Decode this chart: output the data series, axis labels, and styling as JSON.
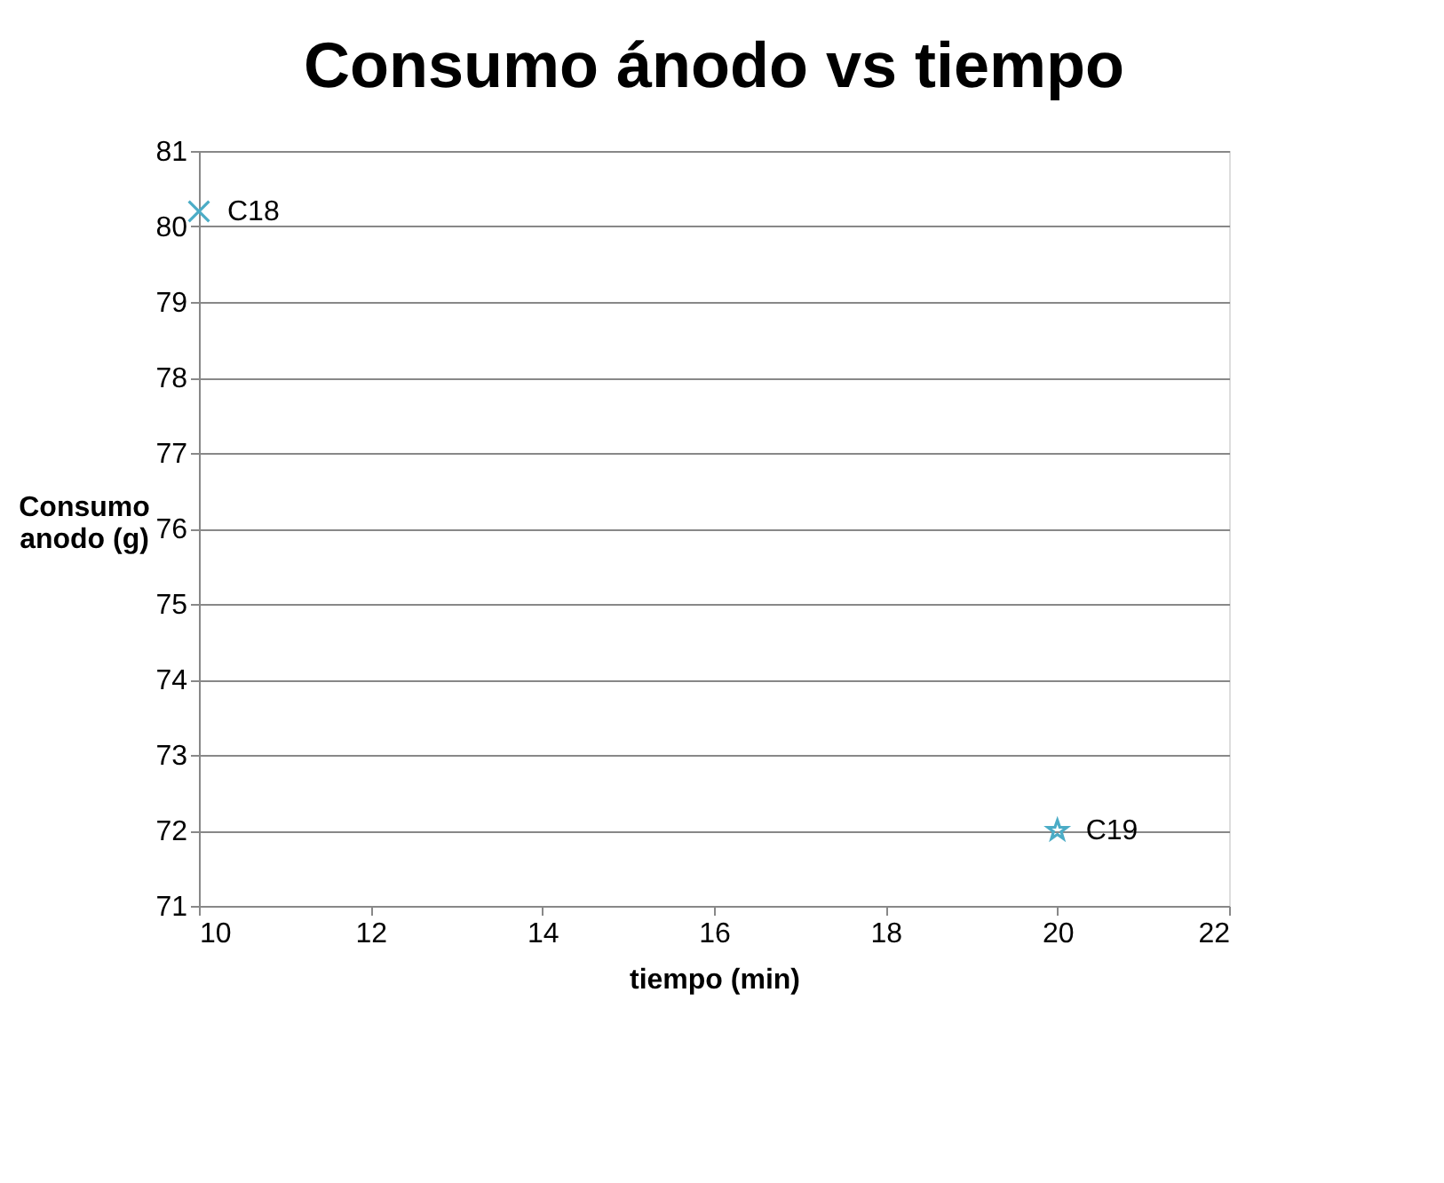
{
  "chart_data": {
    "type": "scatter",
    "title": "Consumo ánodo vs tiempo",
    "xlabel": "tiempo (min)",
    "ylabel": "Consumo anodo (g)",
    "series": [
      {
        "x": [
          10
        ],
        "values": [
          80.2
        ],
        "color": "#4bacc6",
        "marker": "cross"
      },
      {
        "x": [
          20
        ],
        "values": [
          72.0
        ],
        "color": "#4bacc6",
        "marker": "star"
      }
    ],
    "annotations": [
      {
        "text": "C18",
        "x": 10,
        "y": 80.2
      },
      {
        "text": "C19",
        "x": 20,
        "y": 72.0
      }
    ],
    "xlim": [
      10,
      22
    ],
    "xticks": [
      10,
      12,
      14,
      16,
      18,
      20,
      22
    ],
    "ylim": [
      71,
      81
    ],
    "yticks": [
      71,
      72,
      73,
      74,
      75,
      76,
      77,
      78,
      79,
      80,
      81
    ],
    "grid": "y"
  }
}
